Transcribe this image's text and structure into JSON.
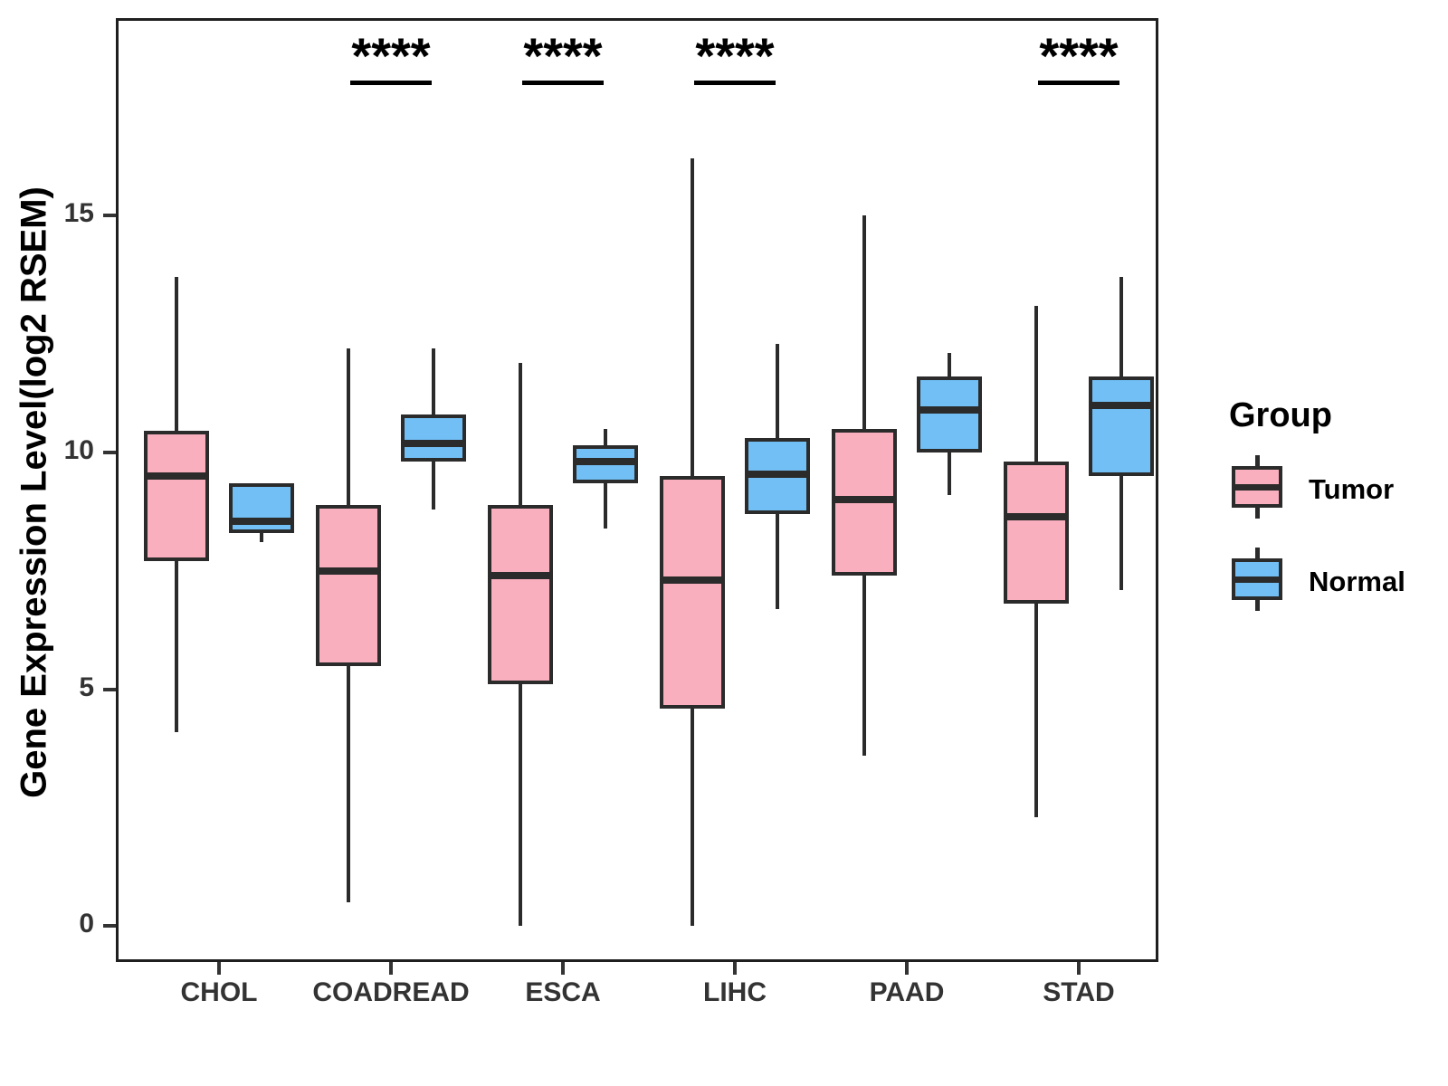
{
  "y_axis": {
    "label": "Gene Expression Level(log2 RSEM)",
    "tick_labels": [
      "0",
      "5",
      "10",
      "15"
    ]
  },
  "x_axis": {
    "categories": [
      "CHOL",
      "COADREAD",
      "ESCA",
      "LIHC",
      "PAAD",
      "STAD"
    ]
  },
  "legend": {
    "title": "Group",
    "items": [
      {
        "label": "Tumor",
        "color": "#FAAFBE"
      },
      {
        "label": "Normal",
        "color": "#71BFF5"
      }
    ]
  },
  "chart_data": {
    "type": "boxplot",
    "title": "",
    "xlabel": "",
    "ylabel": "Gene Expression Level(log2 RSEM)",
    "yticks": [
      0,
      5,
      10,
      15
    ],
    "ylim": [
      -0.8,
      19.2
    ],
    "grid": false,
    "legend_position": "right",
    "categories": [
      "CHOL",
      "COADREAD",
      "ESCA",
      "LIHC",
      "PAAD",
      "STAD"
    ],
    "groups": [
      "Tumor",
      "Normal"
    ],
    "series": [
      {
        "group": "Tumor",
        "color": "#FAAFBE",
        "boxes": [
          {
            "category": "CHOL",
            "min": 4.1,
            "q1": 7.7,
            "median": 9.5,
            "q3": 10.45,
            "max": 13.7
          },
          {
            "category": "COADREAD",
            "min": 0.5,
            "q1": 5.5,
            "median": 7.5,
            "q3": 8.9,
            "max": 12.2
          },
          {
            "category": "ESCA",
            "min": 0.0,
            "q1": 5.1,
            "median": 7.4,
            "q3": 8.9,
            "max": 11.9
          },
          {
            "category": "LIHC",
            "min": 0.0,
            "q1": 4.6,
            "median": 7.3,
            "q3": 9.5,
            "max": 16.2
          },
          {
            "category": "PAAD",
            "min": 3.6,
            "q1": 7.4,
            "median": 9.0,
            "q3": 10.5,
            "max": 15.0
          },
          {
            "category": "STAD",
            "min": 2.3,
            "q1": 6.8,
            "median": 8.65,
            "q3": 9.8,
            "max": 13.1
          }
        ]
      },
      {
        "group": "Normal",
        "color": "#71BFF5",
        "boxes": [
          {
            "category": "CHOL",
            "min": 8.1,
            "q1": 8.3,
            "median": 8.55,
            "q3": 9.35,
            "max": 9.35
          },
          {
            "category": "COADREAD",
            "min": 8.8,
            "q1": 9.8,
            "median": 10.2,
            "q3": 10.8,
            "max": 12.2
          },
          {
            "category": "ESCA",
            "min": 8.4,
            "q1": 9.35,
            "median": 9.8,
            "q3": 10.15,
            "max": 10.5
          },
          {
            "category": "LIHC",
            "min": 6.7,
            "q1": 8.7,
            "median": 9.55,
            "q3": 10.3,
            "max": 12.3
          },
          {
            "category": "PAAD",
            "min": 9.1,
            "q1": 10.0,
            "median": 10.9,
            "q3": 11.6,
            "max": 12.1
          },
          {
            "category": "STAD",
            "min": 7.1,
            "q1": 9.5,
            "median": 11.0,
            "q3": 11.6,
            "max": 13.7
          }
        ]
      }
    ],
    "significance": [
      {
        "category": "COADREAD",
        "label": "****"
      },
      {
        "category": "ESCA",
        "label": "****"
      },
      {
        "category": "LIHC",
        "label": "****"
      },
      {
        "category": "STAD",
        "label": "****"
      }
    ]
  }
}
